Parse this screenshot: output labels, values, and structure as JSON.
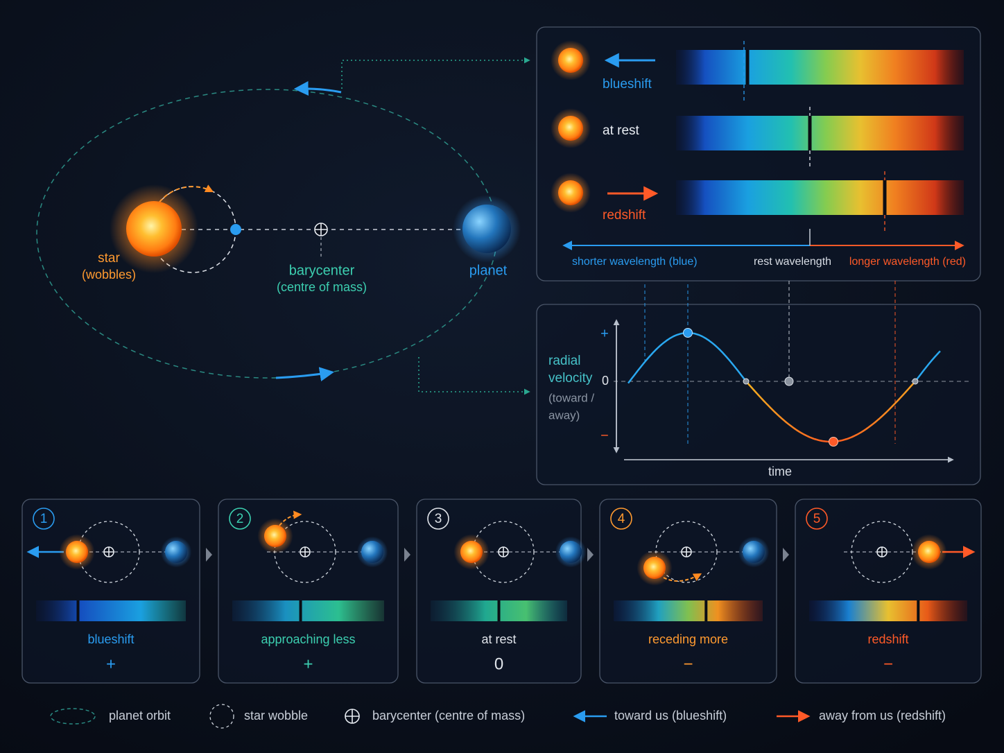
{
  "orbit": {
    "star_label": "star",
    "star_note": "(wobbles)",
    "barycenter_label": "barycenter",
    "barycenter_note": "(centre of mass)",
    "planet_label": "planet"
  },
  "spectra": {
    "rows": [
      {
        "label": "blueshift"
      },
      {
        "label": "at rest"
      },
      {
        "label": "redshift"
      }
    ],
    "axis": {
      "left": "shorter wavelength (blue)",
      "middle": "rest wavelength",
      "right": "longer wavelength (red)"
    }
  },
  "velocity_plot": {
    "y_label": [
      "radial",
      "velocity",
      "(toward /",
      "away)"
    ],
    "y_ticks": [
      "+",
      "0",
      "−"
    ],
    "x_label": "time"
  },
  "steps": [
    {
      "number": "1",
      "label": "blueshift",
      "sign": "+"
    },
    {
      "number": "2",
      "label": "approaching less",
      "sign": "+"
    },
    {
      "number": "3",
      "label": "at rest",
      "sign": "0"
    },
    {
      "number": "4",
      "label": "receding more",
      "sign": "−"
    },
    {
      "number": "5",
      "label": "redshift",
      "sign": "−"
    }
  ],
  "legend": [
    "planet orbit",
    "star wobble",
    "barycenter (centre of mass)",
    "toward us (blueshift)",
    "away from us (redshift)"
  ]
}
